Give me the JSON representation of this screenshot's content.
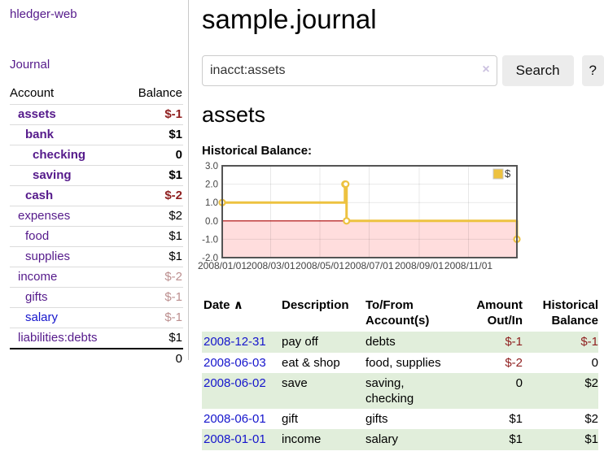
{
  "colors": {
    "link_purple": "#551a8b",
    "link_blue": "#1515cc",
    "negative_strong": "#8f1f1f",
    "negative_muted": "#bc8f8f",
    "table_stripe_green": "#e1eedb",
    "chart_series_gold": "#edc240",
    "chart_negative_region": "#ffdddd",
    "chart_zero_line": "#aa0000",
    "chart_border": "#545454"
  },
  "sidebar": {
    "brand": "hledger-web",
    "journal_link": "Journal",
    "accounts_table": {
      "headers": {
        "account": "Account",
        "balance": "Balance"
      },
      "rows": [
        {
          "name": "assets",
          "indent": 1,
          "bold": true,
          "name_color": "purple",
          "balance": "$-1",
          "balance_color": "negative"
        },
        {
          "name": "bank",
          "indent": 2,
          "bold": true,
          "name_color": "purple",
          "balance": "$1",
          "balance_color": "default"
        },
        {
          "name": "checking",
          "indent": 3,
          "bold": true,
          "name_color": "purple",
          "balance": "0",
          "balance_color": "default"
        },
        {
          "name": "saving",
          "indent": 3,
          "bold": true,
          "name_color": "purple",
          "balance": "$1",
          "balance_color": "default"
        },
        {
          "name": "cash",
          "indent": 2,
          "bold": true,
          "name_color": "purple",
          "balance": "$-2",
          "balance_color": "negative"
        },
        {
          "name": "expenses",
          "indent": 1,
          "bold": false,
          "name_color": "purple",
          "balance": "$2",
          "balance_color": "default"
        },
        {
          "name": "food",
          "indent": 2,
          "bold": false,
          "name_color": "purple",
          "balance": "$1",
          "balance_color": "default"
        },
        {
          "name": "supplies",
          "indent": 2,
          "bold": false,
          "name_color": "purple",
          "balance": "$1",
          "balance_color": "default"
        },
        {
          "name": "income",
          "indent": 1,
          "bold": false,
          "name_color": "purple",
          "balance": "$-2",
          "balance_color": "negative-muted"
        },
        {
          "name": "gifts",
          "indent": 2,
          "bold": false,
          "name_color": "purple",
          "balance": "$-1",
          "balance_color": "negative-muted"
        },
        {
          "name": "salary",
          "indent": 2,
          "bold": false,
          "name_color": "blue",
          "balance": "$-1",
          "balance_color": "negative-muted"
        },
        {
          "name": "liabilities:debts",
          "indent": 1,
          "bold": false,
          "name_color": "purple",
          "balance": "$1",
          "balance_color": "default"
        }
      ],
      "total": "0"
    }
  },
  "header": {
    "title": "sample.journal"
  },
  "search": {
    "value": "inacct:assets",
    "placeholder": "",
    "clear_icon": "×",
    "button_label": "Search",
    "help_label": "?"
  },
  "account_page": {
    "heading": "assets",
    "chart_label": "Historical Balance:"
  },
  "chart_data": {
    "type": "line",
    "mode": "steps",
    "title": "Historical Balance:",
    "xlim": [
      "2008-01-01",
      "2008-12-31"
    ],
    "ylim": [
      -2,
      3
    ],
    "y_ticks": [
      "3.0",
      "2.0",
      "1.0",
      "0.0",
      "-1.0",
      "-2.0"
    ],
    "x_ticks": [
      "2008/01/01",
      "2008/03/01",
      "2008/05/01",
      "2008/07/01",
      "2008/09/01",
      "2008/11/01"
    ],
    "grid": true,
    "legend_position": "top-right",
    "series": [
      {
        "name": "$",
        "color": "#edc240",
        "points": [
          [
            "2008-01-01",
            1
          ],
          [
            "2008-06-01",
            2
          ],
          [
            "2008-06-02",
            2
          ],
          [
            "2008-06-03",
            0
          ],
          [
            "2008-12-31",
            -1
          ]
        ]
      }
    ]
  },
  "transactions": {
    "headers": {
      "date": {
        "label": "Date",
        "sort_icon": "∧"
      },
      "description": "Description",
      "to_from": {
        "line1": "To/From",
        "line2": "Account(s)"
      },
      "amount": {
        "line1": "Amount",
        "line2": "Out/In"
      },
      "balance": {
        "line1": "Historical",
        "line2": "Balance"
      }
    },
    "rows": [
      {
        "date": "2008-12-31",
        "description": "pay off",
        "accounts_lines": [
          "debts"
        ],
        "amount": "$-1",
        "amount_negative": true,
        "balance": "$-1",
        "balance_negative": true
      },
      {
        "date": "2008-06-03",
        "description": "eat & shop",
        "accounts_lines": [
          "food, supplies"
        ],
        "amount": "$-2",
        "amount_negative": true,
        "balance": "0",
        "balance_negative": false
      },
      {
        "date": "2008-06-02",
        "description": "save",
        "accounts_lines": [
          "saving,",
          "checking"
        ],
        "amount": "0",
        "amount_negative": false,
        "balance": "$2",
        "balance_negative": false
      },
      {
        "date": "2008-06-01",
        "description": "gift",
        "accounts_lines": [
          "gifts"
        ],
        "amount": "$1",
        "amount_negative": false,
        "balance": "$2",
        "balance_negative": false
      },
      {
        "date": "2008-01-01",
        "description": "income",
        "accounts_lines": [
          "salary"
        ],
        "amount": "$1",
        "amount_negative": false,
        "balance": "$1",
        "balance_negative": false
      }
    ]
  }
}
